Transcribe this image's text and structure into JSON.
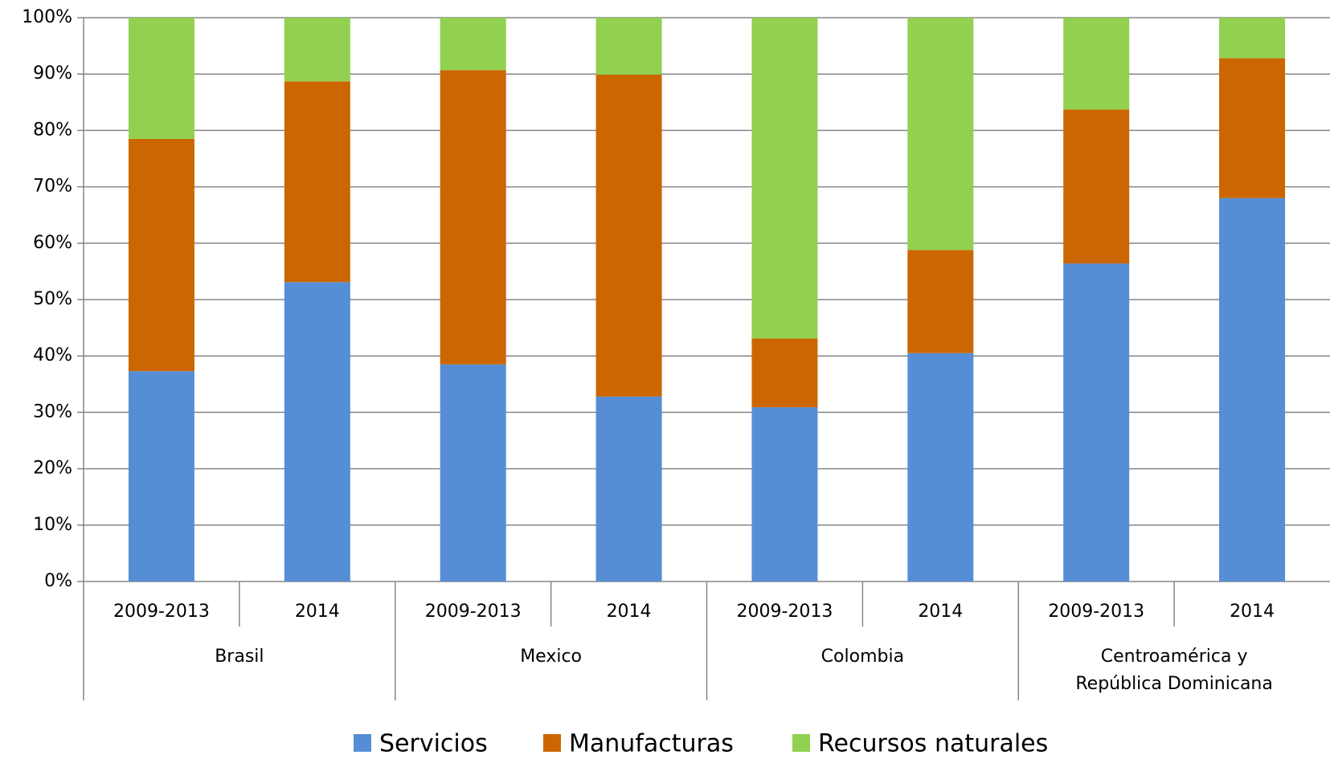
{
  "chart_data": {
    "type": "stacked_bar",
    "categories": [
      "2009-2013",
      "2014",
      "2009-2013",
      "2014",
      "2009-2013",
      "2014",
      "2009-2013",
      "2014"
    ],
    "groups": [
      "Brasil",
      "Mexico",
      "Colombia",
      "Centroamérica y República Dominicana"
    ],
    "series": [
      {
        "name": "Servicios",
        "color": "#558ed5",
        "values": [
          37.3,
          53.1,
          38.5,
          32.8,
          30.9,
          40.5,
          56.4,
          68.0
        ]
      },
      {
        "name": "Manufacturas",
        "color": "#cc6600",
        "values": [
          41.2,
          35.6,
          52.2,
          57.1,
          12.2,
          18.3,
          27.3,
          24.8
        ]
      },
      {
        "name": "Recursos naturales",
        "color": "#92d050",
        "values": [
          21.5,
          11.3,
          9.3,
          10.1,
          56.9,
          41.2,
          16.3,
          7.2
        ]
      }
    ],
    "ylim": [
      0,
      100
    ],
    "yticks": [
      {
        "value": 0,
        "label": "0%"
      },
      {
        "value": 10,
        "label": "10%"
      },
      {
        "value": 20,
        "label": "20%"
      },
      {
        "value": 30,
        "label": "30%"
      },
      {
        "value": 40,
        "label": "40%"
      },
      {
        "value": 50,
        "label": "50%"
      },
      {
        "value": 60,
        "label": "60%"
      },
      {
        "value": 70,
        "label": "70%"
      },
      {
        "value": 80,
        "label": "80%"
      },
      {
        "value": 90,
        "label": "90%"
      },
      {
        "value": 100,
        "label": "100%"
      }
    ],
    "grid": true,
    "legend": "bottom"
  }
}
